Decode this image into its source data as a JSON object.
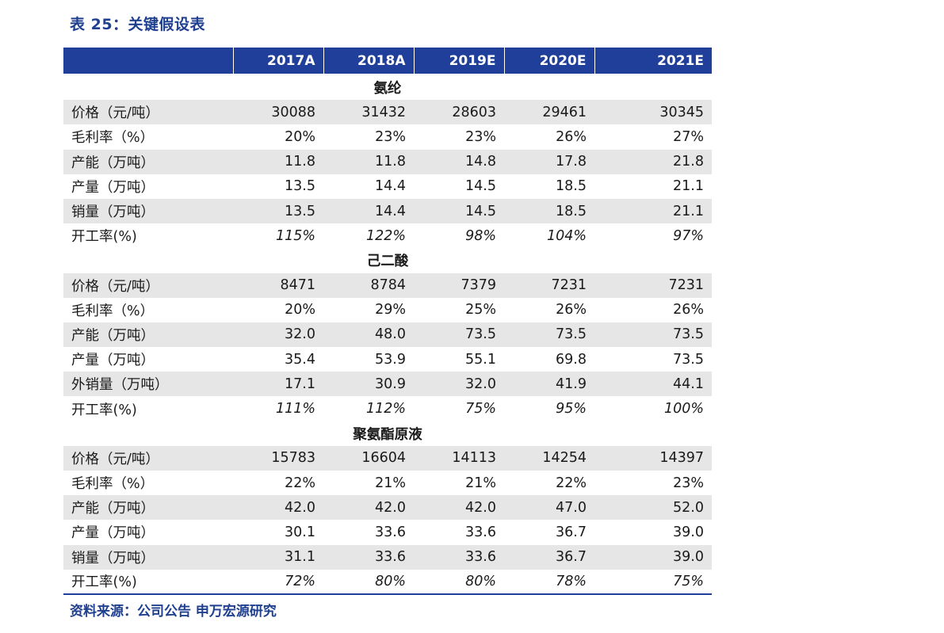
{
  "title": "表 25：关键假设表",
  "source": "资料来源：公司公告  申万宏源研究",
  "table": {
    "columns": [
      "2017A",
      "2018A",
      "2019E",
      "2020E",
      "2021E"
    ],
    "sections": [
      {
        "name": "氨纶",
        "rows": [
          {
            "label": "价格（元/吨）",
            "values": [
              "30088",
              "31432",
              "28603",
              "29461",
              "30345"
            ],
            "italic": false
          },
          {
            "label": "毛利率（%）",
            "values": [
              "20%",
              "23%",
              "23%",
              "26%",
              "27%"
            ],
            "italic": false
          },
          {
            "label": "产能（万吨）",
            "values": [
              "11.8",
              "11.8",
              "14.8",
              "17.8",
              "21.8"
            ],
            "italic": false
          },
          {
            "label": "产量（万吨）",
            "values": [
              "13.5",
              "14.4",
              "14.5",
              "18.5",
              "21.1"
            ],
            "italic": false
          },
          {
            "label": "销量（万吨）",
            "values": [
              "13.5",
              "14.4",
              "14.5",
              "18.5",
              "21.1"
            ],
            "italic": false
          },
          {
            "label": "开工率(%)",
            "values": [
              "115%",
              "122%",
              "98%",
              "104%",
              "97%"
            ],
            "italic": true
          }
        ]
      },
      {
        "name": "己二酸",
        "rows": [
          {
            "label": "价格（元/吨）",
            "values": [
              "8471",
              "8784",
              "7379",
              "7231",
              "7231"
            ],
            "italic": false
          },
          {
            "label": "毛利率（%）",
            "values": [
              "20%",
              "29%",
              "25%",
              "26%",
              "26%"
            ],
            "italic": false
          },
          {
            "label": "产能（万吨）",
            "values": [
              "32.0",
              "48.0",
              "73.5",
              "73.5",
              "73.5"
            ],
            "italic": false
          },
          {
            "label": "产量（万吨）",
            "values": [
              "35.4",
              "53.9",
              "55.1",
              "69.8",
              "73.5"
            ],
            "italic": false
          },
          {
            "label": "外销量（万吨）",
            "values": [
              "17.1",
              "30.9",
              "32.0",
              "41.9",
              "44.1"
            ],
            "italic": false
          },
          {
            "label": "开工率(%)",
            "values": [
              "111%",
              "112%",
              "75%",
              "95%",
              "100%"
            ],
            "italic": true
          }
        ]
      },
      {
        "name": "聚氨酯原液",
        "rows": [
          {
            "label": "价格（元/吨）",
            "values": [
              "15783",
              "16604",
              "14113",
              "14254",
              "14397"
            ],
            "italic": false
          },
          {
            "label": "毛利率（%）",
            "values": [
              "22%",
              "21%",
              "21%",
              "22%",
              "23%"
            ],
            "italic": false
          },
          {
            "label": "产能（万吨）",
            "values": [
              "42.0",
              "42.0",
              "42.0",
              "47.0",
              "52.0"
            ],
            "italic": false
          },
          {
            "label": "产量（万吨）",
            "values": [
              "30.1",
              "33.6",
              "33.6",
              "36.7",
              "39.0"
            ],
            "italic": false
          },
          {
            "label": "销量（万吨）",
            "values": [
              "31.1",
              "33.6",
              "33.6",
              "36.7",
              "39.0"
            ],
            "italic": false
          },
          {
            "label": "开工率(%)",
            "values": [
              "72%",
              "80%",
              "80%",
              "78%",
              "75%"
            ],
            "italic": true
          }
        ]
      }
    ]
  },
  "colors": {
    "header_bg": "#1f3f9a",
    "title_text": "#1f3f8f",
    "shade_row": "#e6e6e6"
  }
}
